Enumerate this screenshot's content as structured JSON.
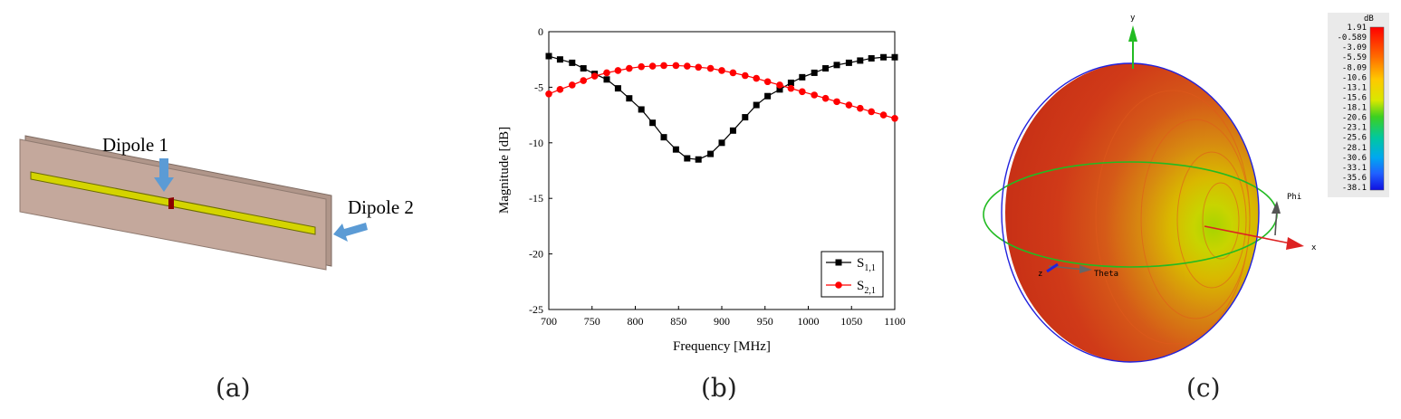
{
  "panel_a": {
    "caption": "(a)",
    "labels": {
      "dipole1": "Dipole 1",
      "dipole2": "Dipole 2"
    },
    "colors": {
      "board": "#c4a89c",
      "board_edge": "#8f7a70",
      "strip": "#d4d400",
      "arrow": "#5b9bd5"
    }
  },
  "panel_b": {
    "caption": "(b)"
  },
  "panel_c": {
    "caption": "(c)",
    "axis_labels": {
      "x": "x",
      "y": "y",
      "phi": "Phi",
      "theta": "Theta",
      "z": "z"
    },
    "colorbar": {
      "unit": "dB",
      "ticks": [
        "1.91",
        "-0.589",
        "-3.09",
        "-5.59",
        "-8.09",
        "-10.6",
        "-13.1",
        "-15.6",
        "-18.1",
        "-20.6",
        "-23.1",
        "-25.6",
        "-28.1",
        "-30.6",
        "-33.1",
        "-35.6",
        "-38.1"
      ]
    }
  },
  "chart_data": {
    "type": "line",
    "title": "",
    "xlabel": "Frequency [MHz]",
    "ylabel": "Magnitude [dB]",
    "xlim": [
      700,
      1100
    ],
    "ylim": [
      -25,
      0
    ],
    "xticks": [
      700,
      750,
      800,
      850,
      900,
      950,
      1000,
      1050,
      1100
    ],
    "yticks": [
      0,
      -5,
      -10,
      -15,
      -20,
      -25
    ],
    "grid": false,
    "legend_position": "bottom-right",
    "series": [
      {
        "name": "S1,1",
        "label_main": "S",
        "label_sub": "1,1",
        "color": "#000000",
        "marker": "square",
        "x": [
          700,
          713,
          727,
          740,
          753,
          767,
          780,
          793,
          807,
          820,
          833,
          847,
          860,
          873,
          887,
          900,
          913,
          927,
          940,
          953,
          967,
          980,
          993,
          1007,
          1020,
          1033,
          1047,
          1060,
          1073,
          1087,
          1100
        ],
        "y": [
          -2.2,
          -2.5,
          -2.8,
          -3.3,
          -3.8,
          -4.3,
          -5.1,
          -6.0,
          -7.0,
          -8.2,
          -9.5,
          -10.6,
          -11.4,
          -11.5,
          -11.0,
          -10.0,
          -8.9,
          -7.7,
          -6.6,
          -5.8,
          -5.2,
          -4.6,
          -4.1,
          -3.7,
          -3.3,
          -3.0,
          -2.8,
          -2.6,
          -2.4,
          -2.3,
          -2.3
        ]
      },
      {
        "name": "S2,1",
        "label_main": "S",
        "label_sub": "2,1",
        "color": "#ff0000",
        "marker": "circle",
        "x": [
          700,
          713,
          727,
          740,
          753,
          767,
          780,
          793,
          807,
          820,
          833,
          847,
          860,
          873,
          887,
          900,
          913,
          927,
          940,
          953,
          967,
          980,
          993,
          1007,
          1020,
          1033,
          1047,
          1060,
          1073,
          1087,
          1100
        ],
        "y": [
          -5.6,
          -5.2,
          -4.8,
          -4.4,
          -4.0,
          -3.7,
          -3.5,
          -3.3,
          -3.15,
          -3.1,
          -3.05,
          -3.05,
          -3.1,
          -3.2,
          -3.3,
          -3.5,
          -3.7,
          -3.95,
          -4.2,
          -4.5,
          -4.8,
          -5.1,
          -5.4,
          -5.7,
          -6.0,
          -6.3,
          -6.6,
          -6.9,
          -7.2,
          -7.5,
          -7.8
        ]
      }
    ]
  }
}
